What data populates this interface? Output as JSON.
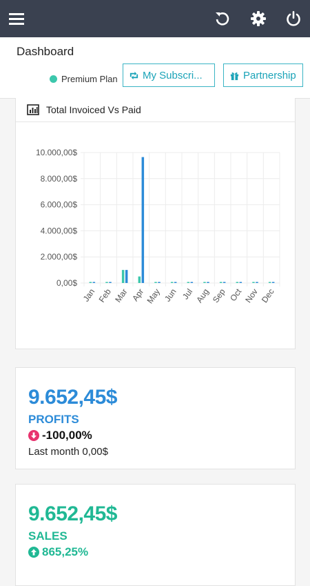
{
  "header": {
    "title": "Dashboard",
    "plan": "Premium Plan",
    "subscription_button": "My Subscri...",
    "partnership_button": "Partnership"
  },
  "chart_card": {
    "title": "Total Invoiced Vs Paid"
  },
  "chart_data": {
    "type": "bar",
    "categories": [
      "Jan",
      "Feb",
      "Mar",
      "Apr",
      "May",
      "Jun",
      "Jul",
      "Aug",
      "Sep",
      "Oct",
      "Nov",
      "Dec"
    ],
    "series": [
      {
        "values": [
          0,
          0,
          1000,
          500,
          0,
          0,
          0,
          0,
          0,
          0,
          0,
          0
        ],
        "color": "#3cc7ac"
      },
      {
        "values": [
          0,
          0,
          1000,
          9652.45,
          0,
          0,
          0,
          0,
          0,
          0,
          0,
          0
        ],
        "color": "#2c8bd8"
      }
    ],
    "yticks": [
      "0,00$",
      "2.000,00$",
      "4.000,00$",
      "6.000,00$",
      "8.000,00$",
      "10.000,00$"
    ],
    "ylim": [
      0,
      10000
    ],
    "grid": true
  },
  "profits": {
    "value": "9.652,45$",
    "label": "PROFITS",
    "change": "-100,00%",
    "last_month": "Last month 0,00$",
    "color": "#2c8bd8",
    "change_color": "#e8336e"
  },
  "sales": {
    "value": "9.652,45$",
    "label": "SALES",
    "change": "865,25%",
    "color": "#20b894",
    "change_color": "#20b894"
  }
}
